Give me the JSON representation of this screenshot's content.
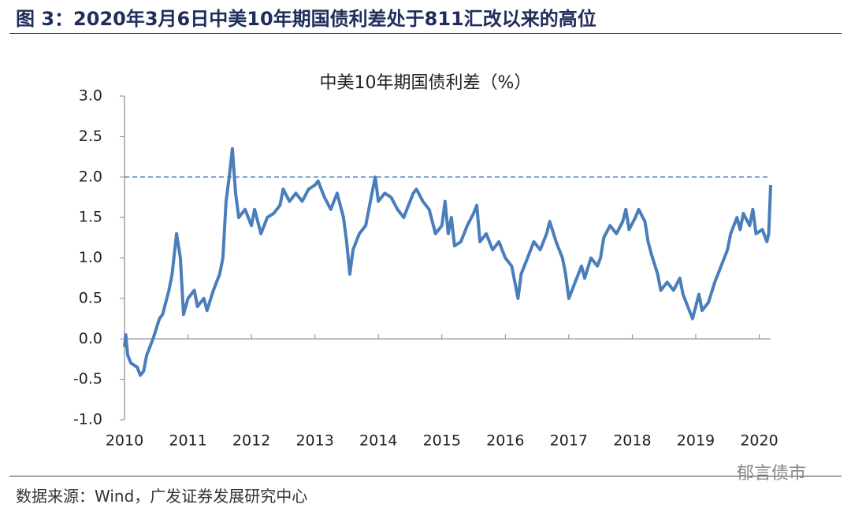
{
  "header": {
    "title": "图 3：2020年3月6日中美10年期国债利差处于811汇改以来的高位"
  },
  "chart_data": {
    "type": "line",
    "title": "中美10年期国债利差（%）",
    "x": [
      2010.0,
      2010.02,
      2010.05,
      2010.1,
      2010.2,
      2010.25,
      2010.3,
      2010.35,
      2010.45,
      2010.55,
      2010.6,
      2010.7,
      2010.75,
      2010.82,
      2010.88,
      2010.93,
      2011.0,
      2011.1,
      2011.15,
      2011.25,
      2011.3,
      2011.4,
      2011.5,
      2011.55,
      2011.6,
      2011.65,
      2011.7,
      2011.75,
      2011.8,
      2011.9,
      2012.0,
      2012.05,
      2012.15,
      2012.25,
      2012.35,
      2012.45,
      2012.5,
      2012.6,
      2012.7,
      2012.8,
      2012.9,
      2013.0,
      2013.05,
      2013.15,
      2013.25,
      2013.35,
      2013.45,
      2013.5,
      2013.55,
      2013.6,
      2013.7,
      2013.8,
      2013.85,
      2013.9,
      2013.95,
      2014.0,
      2014.1,
      2014.2,
      2014.3,
      2014.4,
      2014.45,
      2014.55,
      2014.6,
      2014.7,
      2014.8,
      2014.9,
      2015.0,
      2015.05,
      2015.1,
      2015.15,
      2015.2,
      2015.3,
      2015.4,
      2015.5,
      2015.55,
      2015.6,
      2015.7,
      2015.8,
      2015.9,
      2016.0,
      2016.1,
      2016.15,
      2016.2,
      2016.25,
      2016.35,
      2016.45,
      2016.55,
      2016.65,
      2016.7,
      2016.8,
      2016.9,
      2016.95,
      2017.0,
      2017.1,
      2017.2,
      2017.25,
      2017.35,
      2017.45,
      2017.5,
      2017.55,
      2017.65,
      2017.75,
      2017.85,
      2017.9,
      2017.95,
      2018.05,
      2018.1,
      2018.2,
      2018.25,
      2018.3,
      2018.4,
      2018.45,
      2018.55,
      2018.65,
      2018.75,
      2018.8,
      2018.9,
      2018.95,
      2019.0,
      2019.05,
      2019.1,
      2019.2,
      2019.3,
      2019.4,
      2019.5,
      2019.55,
      2019.65,
      2019.7,
      2019.75,
      2019.85,
      2019.9,
      2019.95,
      2020.05,
      2020.12,
      2020.15,
      2020.18
    ],
    "series": [
      {
        "name": "中美10年期国债利差",
        "color": "#4a7ebb",
        "values": [
          -0.1,
          0.05,
          -0.2,
          -0.3,
          -0.35,
          -0.45,
          -0.4,
          -0.2,
          0.0,
          0.25,
          0.3,
          0.6,
          0.8,
          1.3,
          1.0,
          0.3,
          0.5,
          0.6,
          0.4,
          0.5,
          0.35,
          0.6,
          0.8,
          1.0,
          1.7,
          2.0,
          2.35,
          1.8,
          1.5,
          1.6,
          1.4,
          1.6,
          1.3,
          1.5,
          1.55,
          1.65,
          1.85,
          1.7,
          1.8,
          1.7,
          1.85,
          1.9,
          1.95,
          1.75,
          1.6,
          1.8,
          1.5,
          1.2,
          0.8,
          1.1,
          1.3,
          1.4,
          1.6,
          1.8,
          2.0,
          1.7,
          1.8,
          1.75,
          1.6,
          1.5,
          1.6,
          1.8,
          1.85,
          1.7,
          1.6,
          1.3,
          1.4,
          1.7,
          1.3,
          1.5,
          1.15,
          1.2,
          1.4,
          1.55,
          1.65,
          1.2,
          1.3,
          1.1,
          1.2,
          1.0,
          0.9,
          0.7,
          0.5,
          0.8,
          1.0,
          1.2,
          1.1,
          1.3,
          1.45,
          1.2,
          1.0,
          0.8,
          0.5,
          0.7,
          0.9,
          0.75,
          1.0,
          0.9,
          1.0,
          1.25,
          1.4,
          1.3,
          1.45,
          1.6,
          1.35,
          1.5,
          1.6,
          1.45,
          1.2,
          1.05,
          0.8,
          0.6,
          0.7,
          0.6,
          0.75,
          0.55,
          0.35,
          0.25,
          0.4,
          0.55,
          0.35,
          0.45,
          0.7,
          0.9,
          1.1,
          1.3,
          1.5,
          1.35,
          1.55,
          1.4,
          1.6,
          1.3,
          1.35,
          1.2,
          1.3,
          1.9
        ]
      }
    ],
    "xlim": [
      2010,
      2020.18
    ],
    "xticks": [
      2010,
      2011,
      2012,
      2013,
      2014,
      2015,
      2016,
      2017,
      2018,
      2019,
      2020
    ],
    "ylim": [
      -1.0,
      3.0
    ],
    "yticks": [
      {
        "value": -1.0,
        "label": "-1.0"
      },
      {
        "value": -0.5,
        "label": "-0.5"
      },
      {
        "value": 0,
        "label": "0.0"
      },
      {
        "value": 0.5,
        "label": "0.5"
      },
      {
        "value": 1.0,
        "label": "1.0"
      },
      {
        "value": 1.5,
        "label": "1.5"
      },
      {
        "value": 2.0,
        "label": "2.0"
      },
      {
        "value": 2.5,
        "label": "2.5"
      },
      {
        "value": 3.0,
        "label": "3.0"
      }
    ],
    "hline": 2.0,
    "hline_color": "#4a7ebb"
  },
  "footer": {
    "source": "数据来源：Wind，广发证券发展研究中心",
    "watermark": "郁言债市"
  }
}
